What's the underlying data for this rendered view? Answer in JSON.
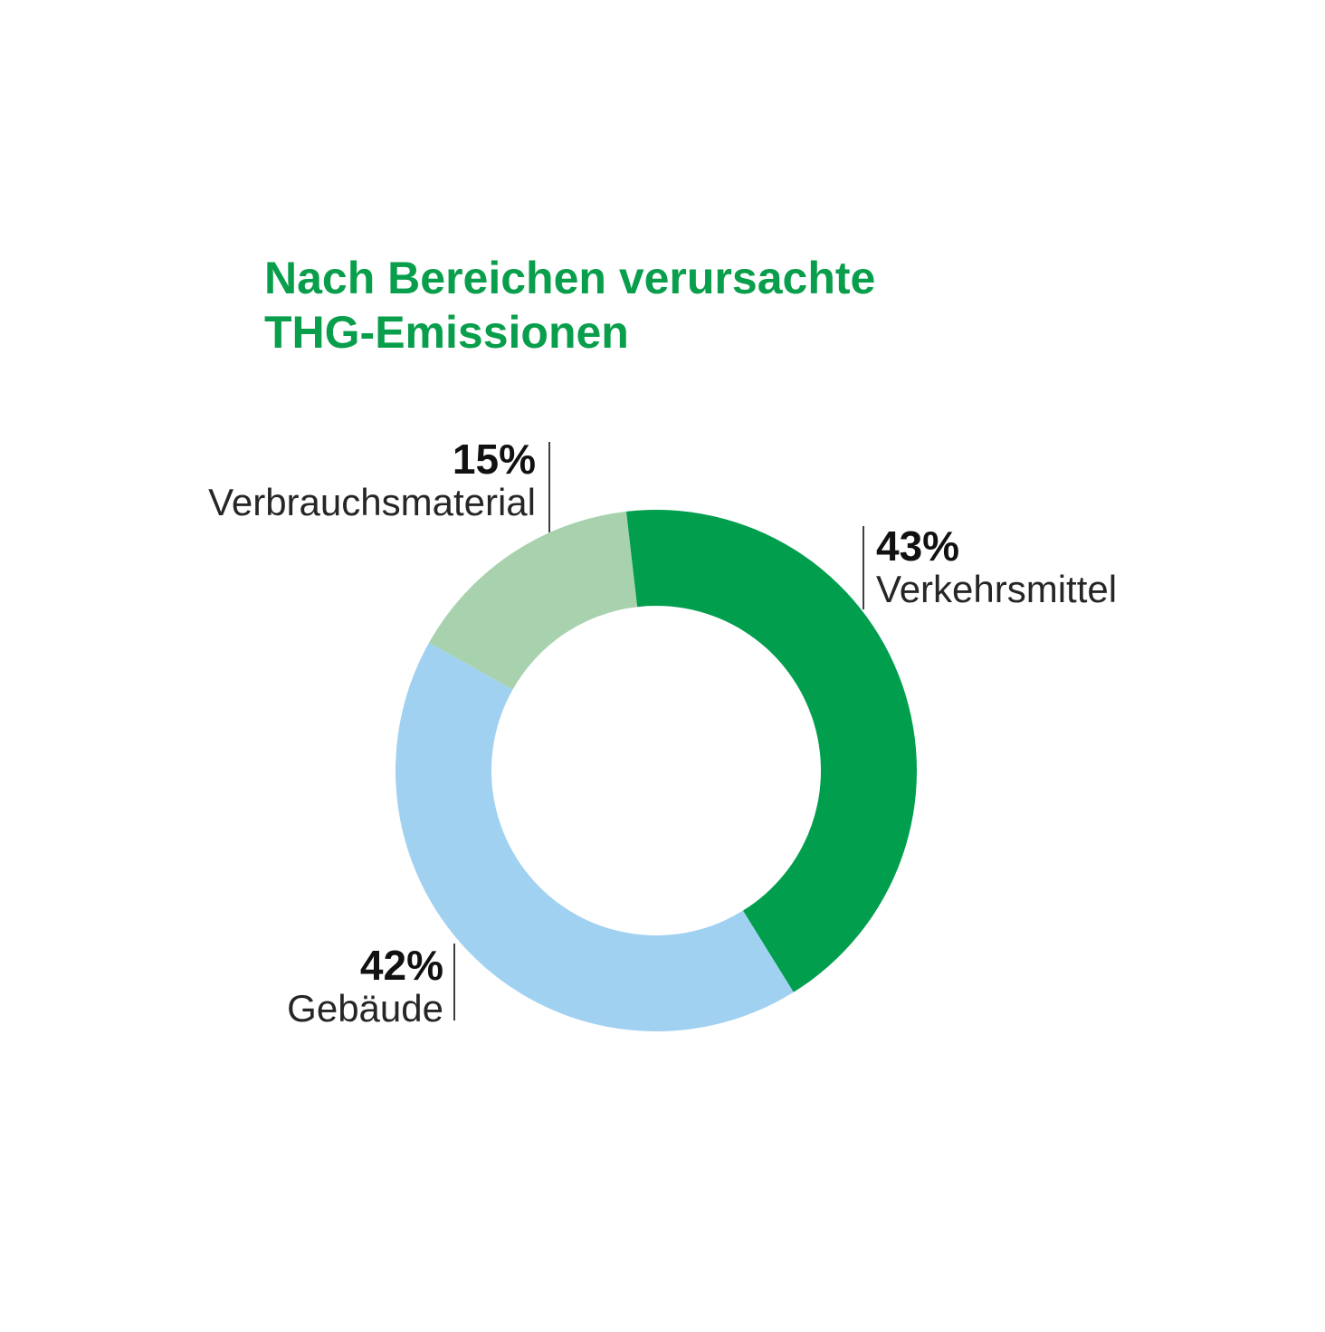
{
  "page": {
    "background": "#ffffff"
  },
  "title": {
    "lines": [
      "Nach Bereichen verursachte",
      "THG-Emissionen"
    ],
    "color": "#089e4b"
  },
  "styles": {
    "leader_line_color": "#3f3f3f",
    "value_text_color": "#111111",
    "label_text_color": "#262626"
  },
  "chart_data": {
    "type": "donut",
    "title": "Nach Bereichen verursachte THG-Emissionen",
    "unit": "percent",
    "direction": "clockwise",
    "start_angle_deg": -6.6,
    "inner_radius_ratio": 0.632,
    "grid": false,
    "legend_position": "callouts",
    "segments": [
      {
        "label": "Verkehrsmittel",
        "value": 43,
        "display_value": "43%",
        "color": "#009e4d",
        "callout_side": "right"
      },
      {
        "label": "Gebäude",
        "value": 42,
        "display_value": "42%",
        "color": "#a1d1f1",
        "callout_side": "bottom-left"
      },
      {
        "label": "Verbrauchsmaterial",
        "value": 15,
        "display_value": "15%",
        "color": "#a7d2ad",
        "callout_side": "top-left"
      }
    ]
  }
}
